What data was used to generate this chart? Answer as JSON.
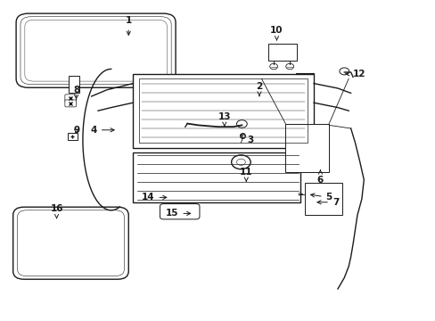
{
  "bg_color": "#ffffff",
  "line_color": "#1a1a1a",
  "lw": 1.0,
  "labels": {
    "1": [
      0.295,
      0.935,
      0.0,
      -0.055
    ],
    "2": [
      0.595,
      0.73,
      0.0,
      -0.03
    ],
    "3": [
      0.575,
      0.565,
      -0.03,
      0.02
    ],
    "4": [
      0.215,
      0.595,
      0.055,
      0.0
    ],
    "5": [
      0.755,
      0.385,
      -0.05,
      0.01
    ],
    "6": [
      0.735,
      0.44,
      0.0,
      0.04
    ],
    "7": [
      0.77,
      0.37,
      -0.05,
      0.0
    ],
    "8": [
      0.175,
      0.72,
      0.0,
      -0.03
    ],
    "9": [
      0.175,
      0.595,
      0.0,
      -0.02
    ],
    "10": [
      0.635,
      0.905,
      0.0,
      -0.04
    ],
    "11": [
      0.565,
      0.465,
      0.0,
      -0.04
    ],
    "12": [
      0.825,
      0.77,
      -0.04,
      0.0
    ],
    "13": [
      0.515,
      0.635,
      0.0,
      -0.03
    ],
    "14": [
      0.34,
      0.385,
      0.05,
      0.0
    ],
    "15": [
      0.395,
      0.335,
      0.05,
      0.0
    ],
    "16": [
      0.13,
      0.35,
      0.0,
      -0.04
    ]
  }
}
